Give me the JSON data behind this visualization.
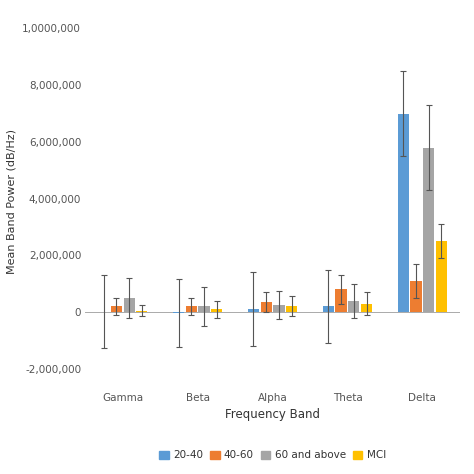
{
  "categories": [
    "Gamma",
    "Beta",
    "Alpha",
    "Theta",
    "Delta"
  ],
  "series": {
    "20-40": {
      "values": [
        20000,
        -30000,
        100000,
        200000,
        7000000
      ],
      "errors": [
        1300000,
        1200000,
        1300000,
        1300000,
        1500000
      ],
      "color": "#5B9BD5"
    },
    "40-60": {
      "values": [
        200000,
        200000,
        350000,
        800000,
        1100000
      ],
      "errors": [
        300000,
        300000,
        350000,
        500000,
        600000
      ],
      "color": "#ED7D31"
    },
    "60 and above": {
      "values": [
        500000,
        200000,
        250000,
        400000,
        5800000
      ],
      "errors": [
        700000,
        700000,
        500000,
        600000,
        1500000
      ],
      "color": "#A5A5A5"
    },
    "MCI": {
      "values": [
        50000,
        100000,
        200000,
        300000,
        2500000
      ],
      "errors": [
        200000,
        300000,
        350000,
        400000,
        600000
      ],
      "color": "#FFC000"
    }
  },
  "ylabel": "Mean Band Power (dB/Hz)",
  "xlabel": "Frequency Band",
  "ylim": [
    -2700000,
    10500000
  ],
  "yticks": [
    -2000000,
    0,
    2000000,
    4000000,
    6000000,
    8000000,
    10000000
  ],
  "ytick_labels": [
    "-2,000,000",
    "0",
    "2,000,000",
    "4,000,000",
    "6,000,000",
    "8,000,000",
    "1,0000,000"
  ],
  "bar_width": 0.15,
  "figsize": [
    4.74,
    4.74
  ],
  "dpi": 100,
  "background_color": "#ffffff",
  "legend_order": [
    "20-40",
    "40-60",
    "60 and above",
    "MCI"
  ]
}
